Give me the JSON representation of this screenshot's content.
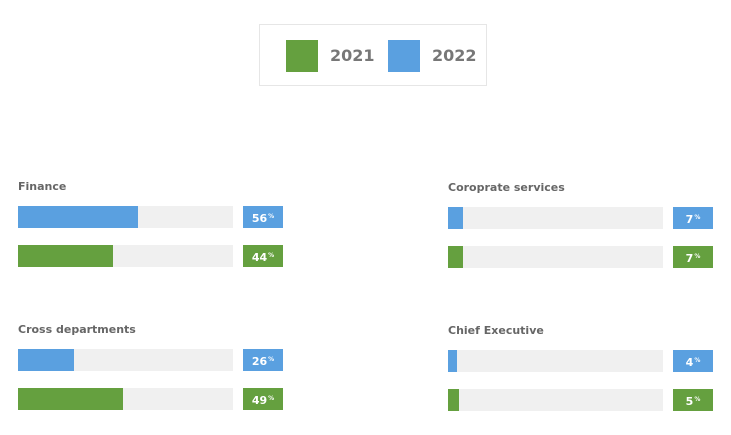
{
  "colors": {
    "y2021": "#65a03f",
    "y2022": "#5aa0e0",
    "track": "#f0f0f0"
  },
  "legend": [
    {
      "label": "2021",
      "color": "#65a03f"
    },
    {
      "label": "2022",
      "color": "#5aa0e0"
    }
  ],
  "chart_data": {
    "type": "bar",
    "orientation": "horizontal",
    "unit": "%",
    "xlim": [
      0,
      100
    ],
    "categories": [
      "Finance",
      "Coroprate services",
      "Cross departments",
      "Chief Executive"
    ],
    "series": [
      {
        "name": "2022",
        "values": [
          56,
          7,
          26,
          4
        ]
      },
      {
        "name": "2021",
        "values": [
          44,
          7,
          49,
          5
        ]
      }
    ],
    "legend_position": "top-center",
    "grid": false
  }
}
